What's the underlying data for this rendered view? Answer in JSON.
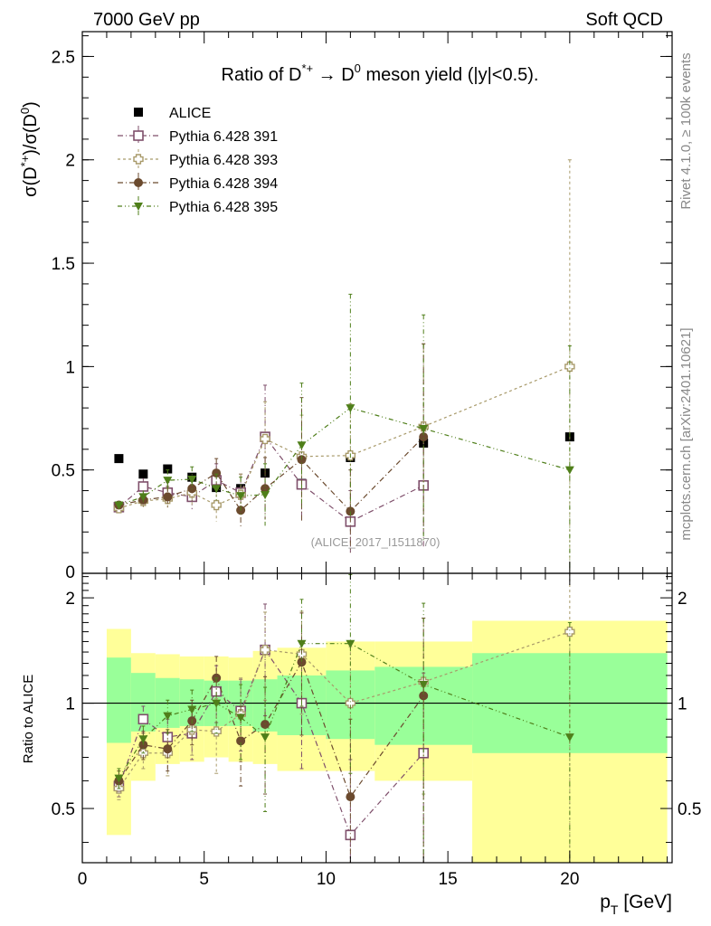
{
  "header": {
    "energy_label": "7000 GeV pp",
    "process_label": "Soft QCD",
    "rivet_label": "Rivet 4.1.0, ≥ 100k events",
    "mcplots_label": "mcplots.cern.ch [arXiv:2401.10621]",
    "analysis_label": "(ALICE_2017_I1511870)"
  },
  "chart_data": [
    {
      "type": "scatter",
      "panel": "main",
      "title": "Ratio of D*+ → D0 meson yield (|y|<0.5).",
      "title_parts": {
        "a": "Ratio of D",
        "a_sup": "*+",
        "arrow": " → D",
        "b_sup": "0",
        "c": " meson yield (|y|<0.5)."
      },
      "ylabel": "σ(D*+)/σ(D0)",
      "xlim": [
        0,
        24.2
      ],
      "ylim": [
        0,
        2.62
      ],
      "yticks": [
        0.5,
        1,
        1.5,
        2,
        2.5
      ],
      "ytick_labels": [
        "0.5",
        "1",
        "1.5",
        "2",
        "2.5"
      ],
      "legend_position": "top-left",
      "series": [
        {
          "name": "ALICE",
          "marker": "filled-square",
          "color": "#000000",
          "x": [
            1.5,
            2.5,
            3.5,
            4.5,
            5.5,
            6.5,
            7.5,
            9.0,
            11.0,
            14.0,
            20.0
          ],
          "y": [
            0.555,
            0.48,
            0.505,
            0.465,
            0.415,
            0.41,
            0.485,
            0.435,
            0.56,
            0.63,
            0.66
          ],
          "err": [
            0,
            0,
            0,
            0,
            0,
            0,
            0,
            0,
            0,
            0,
            0
          ]
        },
        {
          "name": "Pythia 6.428 391",
          "marker": "open-square",
          "color": "#7f4f6b",
          "dash": "6,3,1,3",
          "x": [
            1.5,
            2.5,
            3.5,
            4.5,
            5.5,
            6.5,
            7.5,
            9.0,
            11.0,
            14.0
          ],
          "y": [
            0.32,
            0.42,
            0.39,
            0.37,
            0.45,
            0.39,
            0.66,
            0.43,
            0.25,
            0.425
          ],
          "err": [
            0.02,
            0.04,
            0.05,
            0.06,
            0.08,
            0.09,
            0.25,
            0.15,
            0.15,
            0.3
          ]
        },
        {
          "name": "Pythia 6.428 393",
          "marker": "open-cross",
          "color": "#a89a6a",
          "dash": "3,3",
          "x": [
            1.5,
            2.5,
            3.5,
            4.5,
            5.5,
            6.5,
            7.5,
            9.0,
            11.0,
            14.0,
            20.0
          ],
          "y": [
            0.315,
            0.35,
            0.36,
            0.39,
            0.33,
            0.38,
            0.65,
            0.565,
            0.57,
            0.71,
            1.0
          ],
          "err": [
            0.02,
            0.03,
            0.05,
            0.06,
            0.08,
            0.1,
            0.18,
            0.2,
            0.25,
            0.4,
            1.0
          ]
        },
        {
          "name": "Pythia 6.428 394",
          "marker": "filled-circle",
          "color": "#6b4a2e",
          "dash": "6,3,1,3",
          "x": [
            1.5,
            2.5,
            3.5,
            4.5,
            5.5,
            6.5,
            7.5,
            9.0,
            11.0,
            14.0
          ],
          "y": [
            0.33,
            0.355,
            0.37,
            0.41,
            0.485,
            0.305,
            0.41,
            0.55,
            0.3,
            0.66
          ],
          "err": [
            0.02,
            0.03,
            0.05,
            0.06,
            0.07,
            0.08,
            0.15,
            0.3,
            0.2,
            0.45
          ]
        },
        {
          "name": "Pythia 6.428 395",
          "marker": "filled-triangle-down",
          "color": "#4f7f1a",
          "dash": "5,3,1,3,1,3",
          "x": [
            1.5,
            2.5,
            3.5,
            4.5,
            5.5,
            6.5,
            7.5,
            9.0,
            11.0,
            14.0,
            20.0
          ],
          "y": [
            0.33,
            0.37,
            0.45,
            0.455,
            0.41,
            0.375,
            0.38,
            0.62,
            0.8,
            0.7,
            0.5
          ],
          "err": [
            0.02,
            0.03,
            0.05,
            0.06,
            0.07,
            0.09,
            0.15,
            0.3,
            0.55,
            0.55,
            0.6
          ]
        }
      ]
    },
    {
      "type": "scatter",
      "panel": "ratio",
      "ylabel": "Ratio to ALICE",
      "xlabel": "p_T [GeV]",
      "xlabel_parts": {
        "p": "p",
        "sub": "T",
        "rest": " [GeV]"
      },
      "xlim": [
        0,
        24.2
      ],
      "ylim": [
        0.35,
        2.35
      ],
      "xticks": [
        0,
        5,
        10,
        15,
        20
      ],
      "xtick_labels": [
        "0",
        "5",
        "10",
        "15",
        "20"
      ],
      "yticks": [
        0.5,
        1,
        2
      ],
      "ytick_labels": [
        "0.5",
        "1",
        "2"
      ],
      "reference_line": 1,
      "bands": {
        "bins": [
          [
            1,
            2
          ],
          [
            2,
            3
          ],
          [
            3,
            4
          ],
          [
            4,
            5
          ],
          [
            5,
            6
          ],
          [
            6,
            7
          ],
          [
            7,
            8
          ],
          [
            8,
            10
          ],
          [
            10,
            12
          ],
          [
            12,
            16
          ],
          [
            16,
            24
          ]
        ],
        "inner_color": "#99ff99",
        "outer_color": "#ffff99",
        "inner": [
          [
            0.77,
            1.35
          ],
          [
            0.83,
            1.22
          ],
          [
            0.85,
            1.18
          ],
          [
            0.86,
            1.17
          ],
          [
            0.86,
            1.16
          ],
          [
            0.86,
            1.16
          ],
          [
            0.83,
            1.17
          ],
          [
            0.81,
            1.2
          ],
          [
            0.79,
            1.24
          ],
          [
            0.76,
            1.27
          ],
          [
            0.72,
            1.39
          ]
        ],
        "outer": [
          [
            0.42,
            1.63
          ],
          [
            0.6,
            1.39
          ],
          [
            0.67,
            1.38
          ],
          [
            0.68,
            1.36
          ],
          [
            0.7,
            1.36
          ],
          [
            0.68,
            1.35
          ],
          [
            0.67,
            1.41
          ],
          [
            0.64,
            1.44
          ],
          [
            0.64,
            1.5
          ],
          [
            0.6,
            1.5
          ],
          [
            0.35,
            1.72
          ]
        ]
      },
      "series": [
        {
          "name": "Pythia 6.428 391",
          "x": [
            1.5,
            2.5,
            3.5,
            4.5,
            5.5,
            6.5,
            7.5,
            9.0,
            11.0,
            14.0
          ],
          "y": [
            0.58,
            0.9,
            0.8,
            0.82,
            1.08,
            0.95,
            1.42,
            1.0,
            0.42,
            0.72
          ],
          "err": [
            0.04,
            0.08,
            0.1,
            0.13,
            0.2,
            0.22,
            0.5,
            0.35,
            0.27,
            0.5
          ]
        },
        {
          "name": "Pythia 6.428 393",
          "x": [
            1.5,
            2.5,
            3.5,
            4.5,
            5.5,
            6.5,
            7.5,
            9.0,
            11.0,
            14.0,
            20.0
          ],
          "y": [
            0.57,
            0.72,
            0.72,
            0.84,
            0.83,
            0.93,
            1.42,
            1.38,
            1.0,
            1.15,
            1.6
          ],
          "err": [
            0.04,
            0.07,
            0.1,
            0.13,
            0.2,
            0.25,
            0.4,
            0.45,
            0.45,
            0.6,
            1.3
          ]
        },
        {
          "name": "Pythia 6.428 394",
          "x": [
            1.5,
            2.5,
            3.5,
            4.5,
            5.5,
            6.5,
            7.5,
            9.0,
            11.0,
            14.0
          ],
          "y": [
            0.6,
            0.76,
            0.74,
            0.89,
            1.18,
            0.78,
            0.87,
            1.31,
            0.54,
            1.05
          ],
          "err": [
            0.04,
            0.07,
            0.1,
            0.13,
            0.18,
            0.2,
            0.32,
            0.5,
            0.36,
            0.7
          ]
        },
        {
          "name": "Pythia 6.428 395",
          "x": [
            1.5,
            2.5,
            3.5,
            4.5,
            5.5,
            6.5,
            7.5,
            9.0,
            11.0,
            14.0,
            20.0
          ],
          "y": [
            0.61,
            0.79,
            0.92,
            0.96,
            1.0,
            0.91,
            0.8,
            1.48,
            1.48,
            1.13,
            0.8
          ],
          "err": [
            0.04,
            0.07,
            0.1,
            0.13,
            0.18,
            0.22,
            0.31,
            0.5,
            0.85,
            0.8,
            0.9
          ]
        }
      ]
    }
  ]
}
